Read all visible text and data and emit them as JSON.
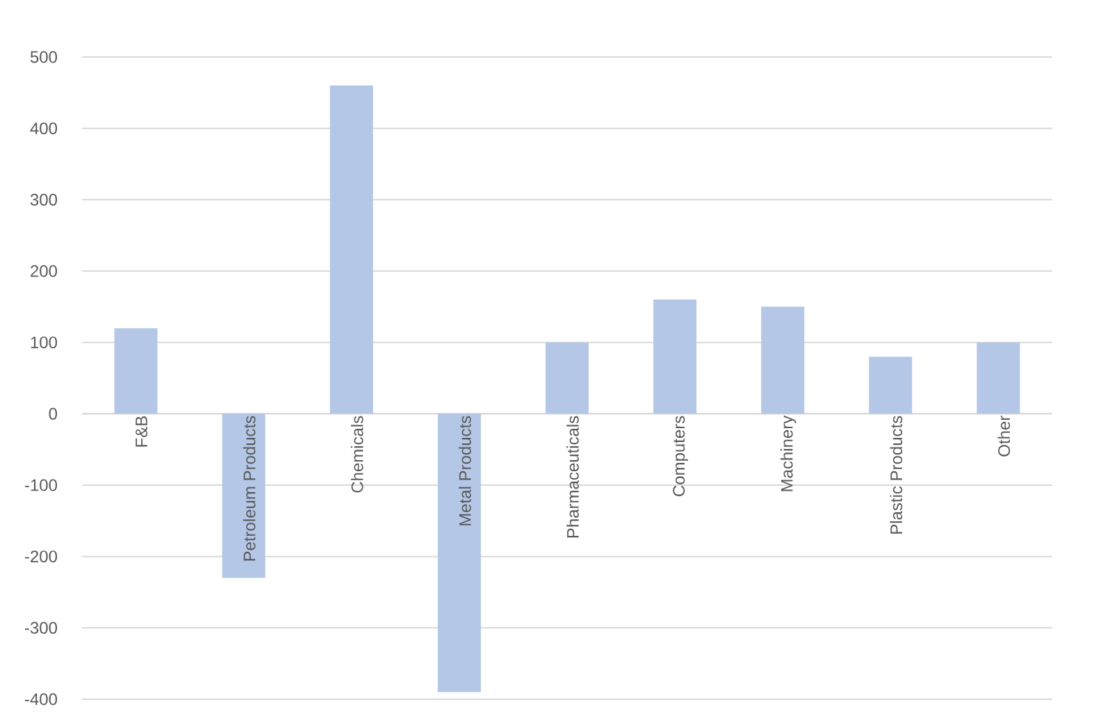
{
  "chart_data": {
    "type": "bar",
    "categories": [
      "F&B",
      "Petroleum Products",
      "Chemicals",
      "Metal Products",
      "Pharmaceuticals",
      "Computers",
      "Machinery",
      "Plastic Products",
      "Other"
    ],
    "values": [
      120,
      -230,
      460,
      -390,
      100,
      160,
      150,
      80,
      100
    ],
    "color": "#b4c7e7",
    "ylim": [
      -400,
      500
    ],
    "yticks": [
      -400,
      -300,
      -200,
      -100,
      0,
      100,
      200,
      300,
      400,
      500
    ],
    "grid": "y"
  }
}
